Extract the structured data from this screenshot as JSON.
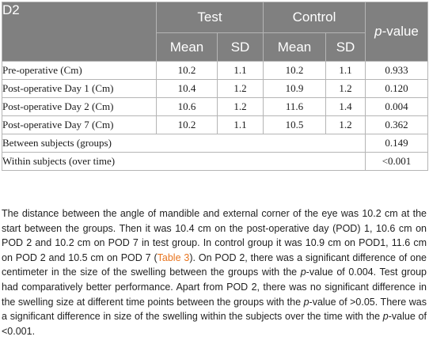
{
  "table": {
    "corner_label": "D2",
    "groups": [
      "Test",
      "Control"
    ],
    "pvalue_prefix": "p",
    "pvalue_suffix": "-value",
    "subheaders": [
      "Mean",
      "SD",
      "Mean",
      "SD"
    ],
    "rows": [
      {
        "label": "Pre-operative (Cm)",
        "test_mean": "10.2",
        "test_sd": "1.1",
        "control_mean": "10.2",
        "control_sd": "1.1",
        "p": "0.933"
      },
      {
        "label": "Post-operative Day 1 (Cm)",
        "test_mean": "10.4",
        "test_sd": "1.2",
        "control_mean": "10.9",
        "control_sd": "1.2",
        "p": "0.120"
      },
      {
        "label": "Post-operative Day 2 (Cm)",
        "test_mean": "10.6",
        "test_sd": "1.2",
        "control_mean": "11.6",
        "control_sd": "1.4",
        "p": "0.004"
      },
      {
        "label": "Post-operative Day 7 (Cm)",
        "test_mean": "10.2",
        "test_sd": "1.1",
        "control_mean": "10.5",
        "control_sd": "1.2",
        "p": "0.362"
      }
    ],
    "summary_rows": [
      {
        "label": "Between subjects (groups)",
        "p": "0.149"
      },
      {
        "label": "Within subjects (over time)",
        "p": "<0.001"
      }
    ]
  },
  "paragraph": {
    "s1": "The distance between the angle of mandible and external corner of the eye was 10.2 cm at the start between the groups. Then it was 10.4 cm on the post-operative day (POD) 1, 10.6 cm on POD 2 and 10.2 cm on POD 7 in test group. In control group it was 10.9 cm on POD1, 11.6 cm on POD 2 and 10.5 cm on POD 7 (",
    "ref": "Table 3",
    "s2": "). On POD 2, there was a significant difference of one centimeter in the size of the swelling between the groups with the ",
    "p1": "p",
    "s3": "-value of 0.004. Test group had comparatively better performance. Apart from POD 2, there was no significant difference in the swelling size at different time points between the groups with the ",
    "p2": "p",
    "s4": "-value of >0.05. There was a significant difference in size of the swelling within the subjects over the time with the ",
    "p3": "p",
    "s5": "-value of <0.001."
  }
}
